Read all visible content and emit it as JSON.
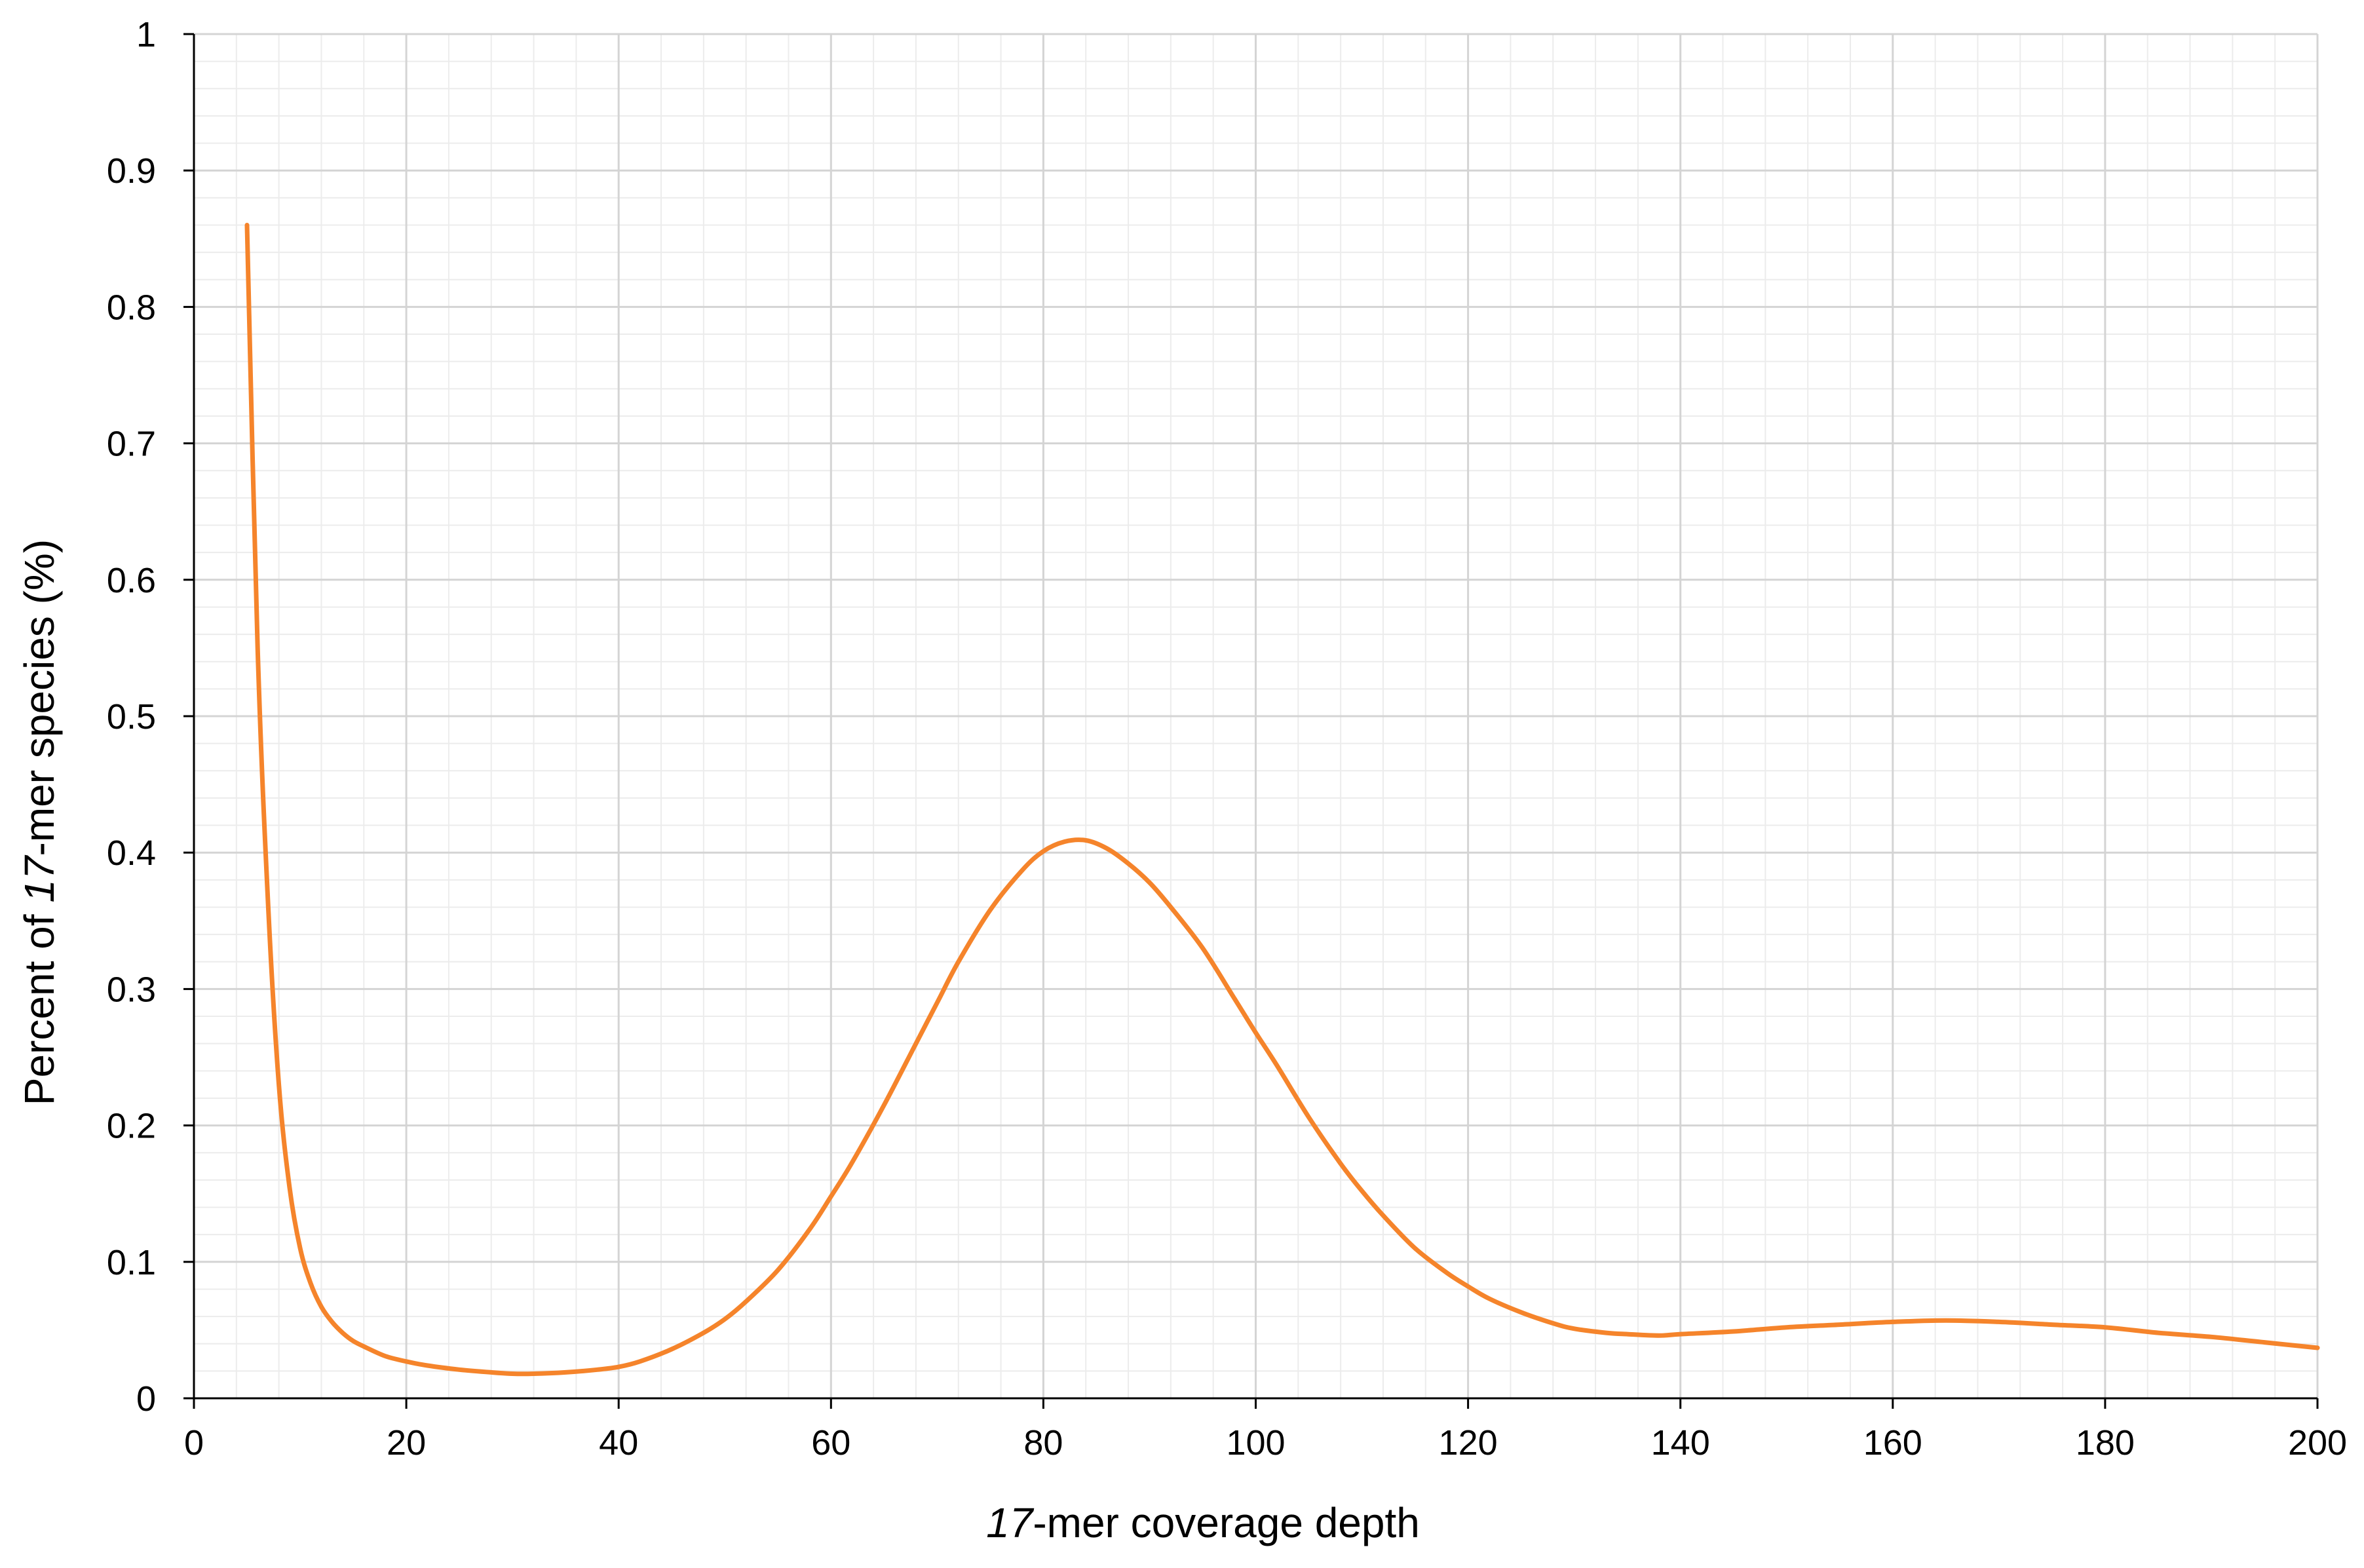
{
  "chart_data": {
    "type": "line",
    "title": "",
    "xlabel": {
      "italic_prefix": "17",
      "rest": "-mer coverage depth"
    },
    "ylabel": {
      "prefix": "Percent of ",
      "italic": "17",
      "rest": "-mer species (%)"
    },
    "xlim": [
      0,
      200
    ],
    "ylim": [
      0,
      1
    ],
    "x_ticks": [
      "0",
      "20",
      "40",
      "60",
      "80",
      "100",
      "120",
      "140",
      "160",
      "180",
      "200"
    ],
    "y_ticks": [
      "0",
      "0.1",
      "0.2",
      "0.3",
      "0.4",
      "0.5",
      "0.6",
      "0.7",
      "0.8",
      "0.9",
      "1"
    ],
    "grid": true,
    "minor_grid": true,
    "legend": "none",
    "series": [
      {
        "color": "#f5842b",
        "points": [
          [
            5,
            0.86
          ],
          [
            6,
            0.55
          ],
          [
            7,
            0.36
          ],
          [
            8,
            0.23
          ],
          [
            9,
            0.155
          ],
          [
            10,
            0.11
          ],
          [
            11,
            0.084
          ],
          [
            12,
            0.067
          ],
          [
            13,
            0.056
          ],
          [
            14,
            0.048
          ],
          [
            15,
            0.042
          ],
          [
            16,
            0.038
          ],
          [
            18,
            0.031
          ],
          [
            20,
            0.027
          ],
          [
            22,
            0.024
          ],
          [
            25,
            0.021
          ],
          [
            28,
            0.019
          ],
          [
            30,
            0.018
          ],
          [
            32,
            0.018
          ],
          [
            35,
            0.019
          ],
          [
            38,
            0.021
          ],
          [
            40,
            0.023
          ],
          [
            42,
            0.027
          ],
          [
            45,
            0.036
          ],
          [
            48,
            0.048
          ],
          [
            50,
            0.058
          ],
          [
            52,
            0.071
          ],
          [
            55,
            0.094
          ],
          [
            58,
            0.124
          ],
          [
            60,
            0.148
          ],
          [
            62,
            0.173
          ],
          [
            65,
            0.215
          ],
          [
            68,
            0.26
          ],
          [
            70,
            0.29
          ],
          [
            72,
            0.32
          ],
          [
            75,
            0.358
          ],
          [
            78,
            0.387
          ],
          [
            80,
            0.401
          ],
          [
            82,
            0.408
          ],
          [
            84,
            0.409
          ],
          [
            86,
            0.403
          ],
          [
            88,
            0.392
          ],
          [
            90,
            0.378
          ],
          [
            92,
            0.36
          ],
          [
            95,
            0.33
          ],
          [
            98,
            0.293
          ],
          [
            100,
            0.268
          ],
          [
            102,
            0.244
          ],
          [
            105,
            0.206
          ],
          [
            108,
            0.172
          ],
          [
            110,
            0.152
          ],
          [
            112,
            0.134
          ],
          [
            115,
            0.11
          ],
          [
            118,
            0.092
          ],
          [
            120,
            0.082
          ],
          [
            122,
            0.073
          ],
          [
            125,
            0.063
          ],
          [
            128,
            0.055
          ],
          [
            130,
            0.051
          ],
          [
            133,
            0.048
          ],
          [
            135,
            0.047
          ],
          [
            138,
            0.046
          ],
          [
            140,
            0.047
          ],
          [
            145,
            0.049
          ],
          [
            150,
            0.052
          ],
          [
            155,
            0.054
          ],
          [
            160,
            0.056
          ],
          [
            165,
            0.057
          ],
          [
            170,
            0.056
          ],
          [
            175,
            0.054
          ],
          [
            180,
            0.052
          ],
          [
            185,
            0.048
          ],
          [
            190,
            0.045
          ],
          [
            195,
            0.041
          ],
          [
            200,
            0.037
          ]
        ]
      }
    ]
  }
}
